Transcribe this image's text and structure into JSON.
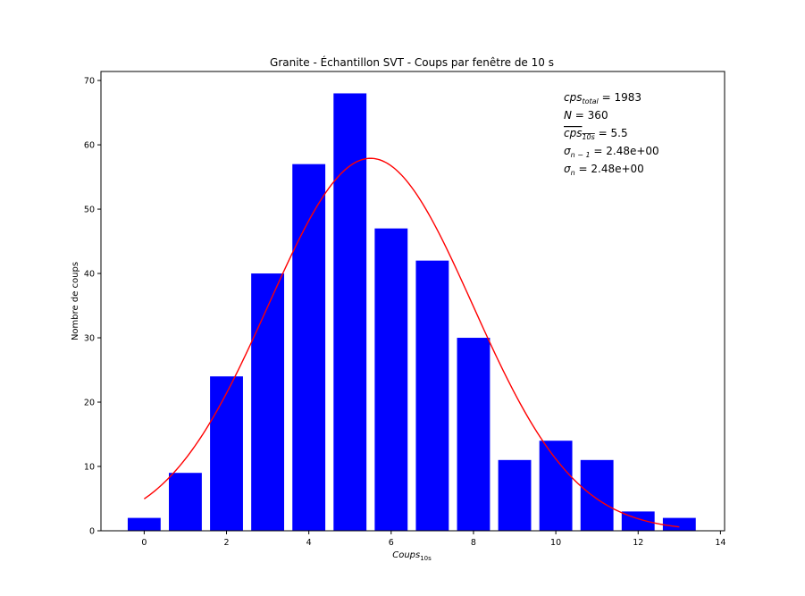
{
  "chart_data": {
    "type": "bar",
    "title": "Granite - Échantillon SVT - Coups par fenêtre de 10 s",
    "xlabel": "Coups",
    "xlabel_sub": "10s",
    "ylabel": "Nombre de coups",
    "xlim": [
      -1.05,
      14.1
    ],
    "ylim": [
      0,
      71.4
    ],
    "xticks": [
      0,
      2,
      4,
      6,
      8,
      10,
      12,
      14
    ],
    "yticks": [
      0,
      10,
      20,
      30,
      40,
      50,
      60,
      70
    ],
    "bar_color": "#0000ff",
    "bar_width": 0.8,
    "grid": false,
    "x": [
      0,
      1,
      2,
      3,
      4,
      5,
      6,
      7,
      8,
      9,
      10,
      11,
      12,
      13
    ],
    "values": [
      2,
      9,
      24,
      40,
      57,
      68,
      47,
      42,
      30,
      11,
      14,
      11,
      3,
      2
    ],
    "fit_curve": {
      "color": "#ff0000",
      "type": "gaussian",
      "mean": 5.5,
      "sigma": 2.48,
      "peak": 57.9,
      "x_range": [
        0,
        13
      ]
    },
    "annotations": [
      {
        "base": "cps",
        "sub": "total",
        "value": "1983"
      },
      {
        "base": "N",
        "sub": "",
        "value": "360"
      },
      {
        "base": "cps",
        "sub": "10s",
        "value": "5.5",
        "overline": true
      },
      {
        "base": "σ",
        "sub": "n − 1",
        "value": "2.48e+00"
      },
      {
        "base": "σ",
        "sub": "n",
        "value": "2.48e+00"
      }
    ]
  }
}
